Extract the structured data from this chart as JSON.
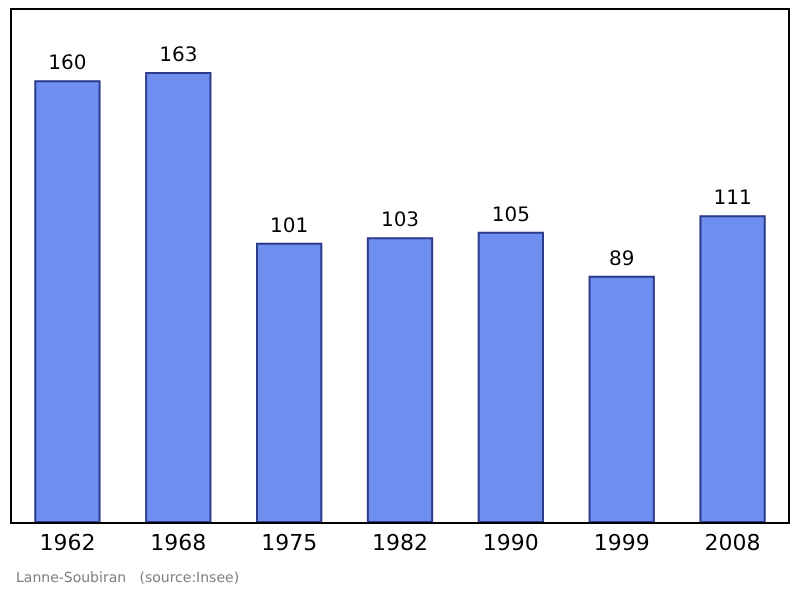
{
  "chart_data": {
    "type": "bar",
    "categories": [
      "1962",
      "1968",
      "1975",
      "1982",
      "1990",
      "1999",
      "2008"
    ],
    "values": [
      160,
      163,
      101,
      103,
      105,
      89,
      111
    ],
    "color": "#6f8ff0",
    "data_labels": true,
    "legend": false,
    "annotations": [
      "Lanne-Soubiran   (source:Insee)"
    ]
  }
}
